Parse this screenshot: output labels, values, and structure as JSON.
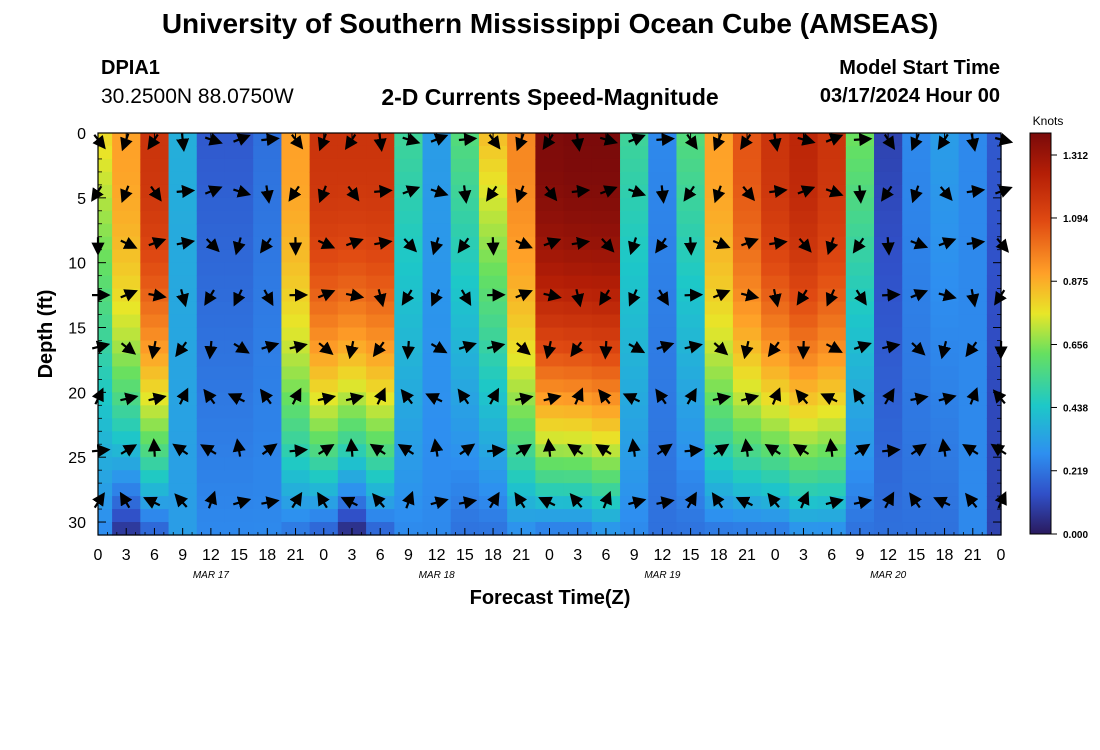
{
  "header": {
    "title": "University of Southern Mississippi Ocean Cube (AMSEAS)",
    "station_id": "DPIA1",
    "coordinates": "30.2500N  88.0750W",
    "subtitle": "2-D Currents Speed-Magnitude",
    "model_start_label": "Model Start Time",
    "model_start_value": "03/17/2024 Hour 00"
  },
  "footer": {
    "title": "University of Southern Mississippi Ocean Cube (AMSEAS)"
  },
  "chart_data": {
    "type": "heatmap",
    "title": "2-D Currents Speed-Magnitude",
    "xlabel": "Forecast Time(Z)",
    "ylabel": "Depth (ft)",
    "x_tick_labels": [
      "0",
      "3",
      "6",
      "9",
      "12",
      "15",
      "18",
      "21",
      "0",
      "3",
      "6",
      "9",
      "12",
      "15",
      "18",
      "21",
      "0",
      "3",
      "6",
      "9",
      "12",
      "15",
      "18",
      "21",
      "0",
      "3",
      "6",
      "9",
      "12",
      "15",
      "18",
      "21",
      "0"
    ],
    "x_range_hours": [
      0,
      96
    ],
    "date_labels": [
      {
        "label": "MAR 17",
        "hour": 12
      },
      {
        "label": "MAR 18",
        "hour": 36
      },
      {
        "label": "MAR 19",
        "hour": 60
      },
      {
        "label": "MAR 20",
        "hour": 84
      }
    ],
    "y_ticks": [
      0,
      5,
      10,
      15,
      20,
      25,
      30
    ],
    "y_range_ft": [
      0,
      31
    ],
    "colorbar": {
      "unit": "Knots",
      "min": 0.0,
      "max": 1.312,
      "ticks": [
        "1.312",
        "1.094",
        "0.875",
        "0.656",
        "0.438",
        "0.219",
        "0.000"
      ],
      "tick_values": [
        1.312,
        1.094,
        0.875,
        0.656,
        0.438,
        0.219,
        0.0
      ]
    },
    "vector_depths_ft": [
      0.5,
      4.5,
      8.5,
      12.5,
      16.5,
      20.5,
      24.5,
      28.5
    ],
    "vector_hours": [
      0,
      3,
      6,
      9,
      12,
      15,
      18,
      21,
      24,
      27,
      30,
      33,
      36,
      39,
      42,
      45,
      48,
      51,
      54,
      57,
      60,
      63,
      66,
      69,
      72,
      75,
      78,
      81,
      84,
      87,
      90,
      93,
      96
    ],
    "surface_speed_knots": [
      0.75,
      0.85,
      1.1,
      0.35,
      0.15,
      0.15,
      0.2,
      0.85,
      1.1,
      1.1,
      1.1,
      0.5,
      0.3,
      0.55,
      0.8,
      0.9,
      1.3,
      1.31,
      1.31,
      0.5,
      0.25,
      0.55,
      0.85,
      1.0,
      1.1,
      1.15,
      1.1,
      0.6,
      0.1,
      0.25,
      0.3,
      0.25,
      0.15
    ],
    "bottom_speed_knots": [
      0.25,
      0.05,
      0.15,
      0.3,
      0.25,
      0.25,
      0.25,
      0.2,
      0.15,
      0.02,
      0.15,
      0.25,
      0.25,
      0.2,
      0.2,
      0.25,
      0.2,
      0.2,
      0.25,
      0.25,
      0.2,
      0.2,
      0.2,
      0.2,
      0.2,
      0.25,
      0.25,
      0.2,
      0.2,
      0.2,
      0.2,
      0.25,
      0.1
    ]
  }
}
